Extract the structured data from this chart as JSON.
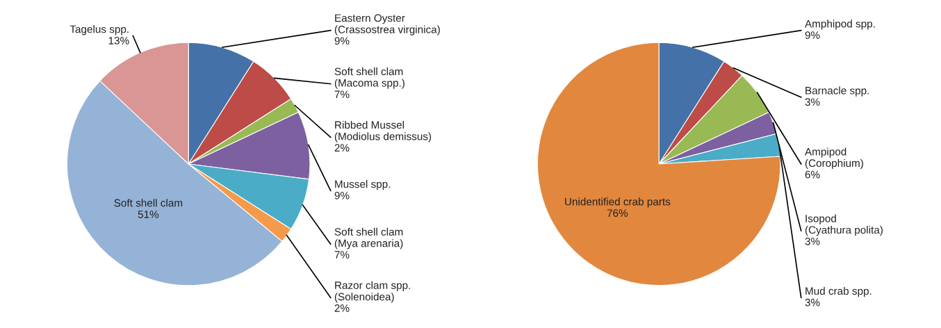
{
  "chart_data": [
    {
      "type": "pie",
      "categories": [
        "Eastern Oyster (Crassostrea virginica)",
        "Soft shell clam (Macoma spp.)",
        "Ribbed Mussel (Modiolus demissus)",
        "Mussel spp.",
        "Soft shell clam (Mya arenaria)",
        "Razor clam spp. (Solenoidea)",
        "Soft shell clam",
        "Tagelus spp."
      ],
      "values": [
        9,
        7,
        2,
        9,
        7,
        2,
        51,
        13
      ],
      "value_labels": [
        "9%",
        "7%",
        "2%",
        "9%",
        "7%",
        "2%",
        "51%",
        "13%"
      ],
      "colors": [
        "#4472a8",
        "#bd4b48",
        "#98b954",
        "#7d60a0",
        "#4aacc6",
        "#f59a4a",
        "#95b3d7",
        "#d99694"
      ]
    },
    {
      "type": "pie",
      "categories": [
        "Amphipod spp.",
        "Barnacle spp.",
        "Ampipod (Corophium)",
        "Isopod (Cyathura polita)",
        "Mud crab spp.",
        "Unidentified crab parts"
      ],
      "values": [
        9,
        3,
        6,
        3,
        3,
        76
      ],
      "value_labels": [
        "9%",
        "3%",
        "6%",
        "3%",
        "3%",
        "76%"
      ],
      "colors": [
        "#4472a8",
        "#bd4b48",
        "#98b954",
        "#7d60a0",
        "#4aacc6",
        "#e2873e"
      ]
    }
  ]
}
